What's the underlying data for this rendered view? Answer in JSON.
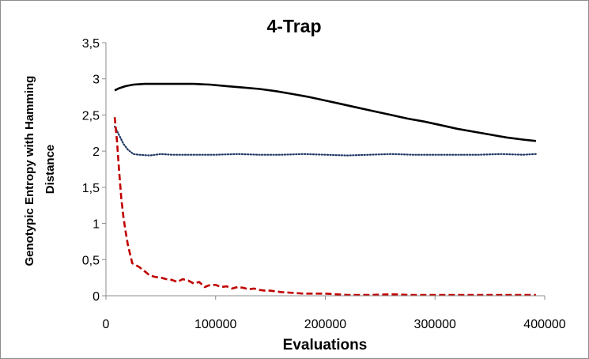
{
  "chart_data": {
    "type": "line",
    "title": "4-Trap",
    "xlabel": "Evaluations",
    "ylabel_lines": [
      "Genotypic Entropy with Hamming",
      "Distance"
    ],
    "xlim": [
      0,
      400000
    ],
    "ylim": [
      0,
      3.5
    ],
    "x_ticks": [
      0,
      100000,
      200000,
      300000,
      400000
    ],
    "x_tick_labels": [
      "0",
      "100000",
      "200000",
      "300000",
      "400000"
    ],
    "y_ticks": [
      0,
      0.5,
      1,
      1.5,
      2,
      2.5,
      3,
      3.5
    ],
    "y_tick_labels": [
      "0",
      "0,5",
      "1",
      "1,5",
      "2",
      "2,5",
      "3",
      "3,5"
    ],
    "grid": false,
    "legend": "none",
    "series": [
      {
        "style": "solid",
        "color": "#000000",
        "x": [
          8000,
          12000,
          18000,
          25000,
          35000,
          50000,
          65000,
          80000,
          95000,
          110000,
          125000,
          140000,
          155000,
          170000,
          185000,
          200000,
          215000,
          230000,
          245000,
          260000,
          275000,
          290000,
          305000,
          320000,
          335000,
          350000,
          365000,
          380000,
          392000
        ],
        "y": [
          2.84,
          2.87,
          2.9,
          2.92,
          2.93,
          2.93,
          2.93,
          2.93,
          2.92,
          2.9,
          2.88,
          2.86,
          2.83,
          2.79,
          2.75,
          2.7,
          2.65,
          2.6,
          2.55,
          2.5,
          2.45,
          2.41,
          2.36,
          2.31,
          2.27,
          2.23,
          2.19,
          2.16,
          2.14
        ]
      },
      {
        "style": "dotted",
        "color": "#1f3864",
        "x": [
          8000,
          12000,
          16000,
          20000,
          25000,
          30000,
          40000,
          50000,
          60000,
          80000,
          100000,
          120000,
          140000,
          160000,
          180000,
          200000,
          220000,
          240000,
          260000,
          280000,
          300000,
          320000,
          340000,
          360000,
          380000,
          392000
        ],
        "y": [
          2.34,
          2.22,
          2.1,
          2.02,
          1.96,
          1.95,
          1.94,
          1.96,
          1.95,
          1.95,
          1.95,
          1.96,
          1.95,
          1.95,
          1.96,
          1.95,
          1.94,
          1.95,
          1.96,
          1.95,
          1.95,
          1.95,
          1.95,
          1.96,
          1.95,
          1.96
        ]
      },
      {
        "style": "dashed",
        "color": "#c00000",
        "x": [
          8000,
          10000,
          12000,
          14000,
          16000,
          18000,
          20000,
          24000,
          30000,
          36000,
          40000,
          45000,
          50000,
          55000,
          60000,
          65000,
          70000,
          75000,
          80000,
          85000,
          90000,
          95000,
          100000,
          105000,
          110000,
          115000,
          120000,
          125000,
          130000,
          135000,
          140000,
          145000,
          150000,
          160000,
          170000,
          180000,
          190000,
          200000,
          210000,
          220000,
          240000,
          260000,
          280000,
          300000,
          320000,
          340000,
          360000,
          380000,
          392000
        ],
        "y": [
          2.47,
          2.15,
          1.72,
          1.35,
          1.08,
          0.88,
          0.7,
          0.45,
          0.4,
          0.33,
          0.28,
          0.26,
          0.25,
          0.23,
          0.22,
          0.19,
          0.23,
          0.21,
          0.17,
          0.19,
          0.12,
          0.15,
          0.15,
          0.12,
          0.13,
          0.1,
          0.12,
          0.11,
          0.09,
          0.1,
          0.08,
          0.07,
          0.07,
          0.05,
          0.04,
          0.03,
          0.03,
          0.03,
          0.02,
          0.01,
          0.01,
          0.02,
          0.01,
          0.01,
          0.01,
          0.01,
          0.01,
          0.01,
          0.01
        ]
      }
    ]
  }
}
